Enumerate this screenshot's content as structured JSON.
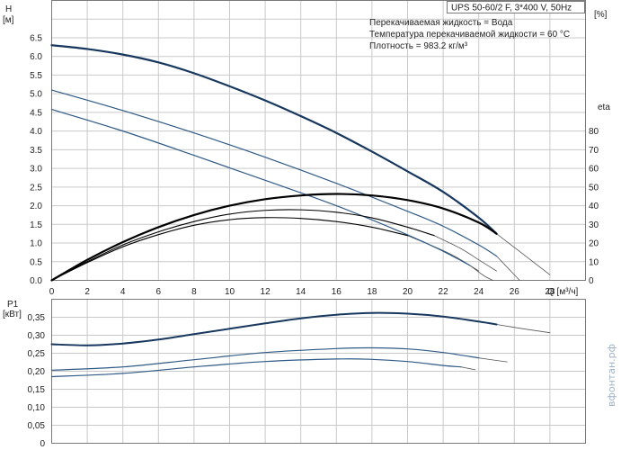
{
  "chart_data": [
    {
      "type": "line",
      "panel": "head-efficiency",
      "model_title": "UPS 50-60/2 F, 3*400 V, 50Hz",
      "info_lines": [
        "Перекачиваемая жидкость = Вода",
        "Температура перекачиваемой жидкости = 60 °C",
        "Плотность = 983.2 кг/м³"
      ],
      "ylabel": "H",
      "ylabel_unit": "[м]",
      "y2label": "eta",
      "y2label_unit": "[%]",
      "xlabel": "Q [м³/ч]",
      "xlim": [
        0,
        30
      ],
      "ylim": [
        0,
        7.5
      ],
      "y2lim": [
        0,
        150
      ],
      "x_ticks": [
        0,
        2,
        4,
        6,
        8,
        10,
        12,
        14,
        16,
        18,
        20,
        22,
        24,
        26,
        28
      ],
      "y_ticks": [
        "0.0",
        "0.5",
        "1.0",
        "1.5",
        "2.0",
        "2.5",
        "3.0",
        "3.5",
        "4.0",
        "4.5",
        "5.0",
        "5.5",
        "6.0",
        "6.5"
      ],
      "y2_ticks": [
        0,
        10,
        20,
        30,
        40,
        50,
        60,
        70,
        80
      ],
      "grid": true,
      "head_series": [
        {
          "points": [
            [
              0,
              6.3
            ],
            [
              2,
              6.2
            ],
            [
              4,
              6.05
            ],
            [
              6,
              5.84
            ],
            [
              8,
              5.55
            ],
            [
              10,
              5.2
            ],
            [
              12,
              4.82
            ],
            [
              14,
              4.4
            ],
            [
              16,
              3.95
            ],
            [
              18,
              3.45
            ],
            [
              20,
              2.92
            ],
            [
              22,
              2.37
            ],
            [
              24,
              1.68
            ],
            [
              25,
              1.25
            ]
          ],
          "emphasis": true
        },
        {
          "points": [
            [
              0,
              5.1
            ],
            [
              4,
              4.55
            ],
            [
              8,
              3.95
            ],
            [
              12,
              3.3
            ],
            [
              16,
              2.6
            ],
            [
              20,
              1.85
            ],
            [
              22,
              1.45
            ],
            [
              24,
              0.95
            ],
            [
              25,
              0.65
            ]
          ],
          "emphasis": false
        },
        {
          "points": [
            [
              0,
              4.58
            ],
            [
              4,
              4.0
            ],
            [
              8,
              3.35
            ],
            [
              12,
              2.68
            ],
            [
              16,
              2.0
            ],
            [
              20,
              1.22
            ],
            [
              22,
              0.78
            ],
            [
              23.5,
              0.4
            ]
          ],
          "emphasis": false
        }
      ],
      "head_tails": [
        {
          "points": [
            [
              25,
              1.25
            ],
            [
              26.5,
              0.7
            ],
            [
              28,
              0.15
            ]
          ]
        },
        {
          "points": [
            [
              25,
              0.65
            ],
            [
              25.7,
              0.3
            ],
            [
              26.3,
              0.0
            ]
          ]
        },
        {
          "points": [
            [
              23.5,
              0.4
            ],
            [
              24.3,
              0.12
            ],
            [
              24.8,
              0.0
            ]
          ]
        }
      ],
      "eta_series": [
        {
          "points": [
            [
              0,
              0
            ],
            [
              2,
              11
            ],
            [
              4,
              20.5
            ],
            [
              6,
              28.5
            ],
            [
              8,
              35
            ],
            [
              10,
              40
            ],
            [
              12,
              43.5
            ],
            [
              14,
              45.5
            ],
            [
              16,
              46.3
            ],
            [
              18,
              45.5
            ],
            [
              20,
              43
            ],
            [
              22,
              38.5
            ],
            [
              24,
              31
            ],
            [
              25,
              25
            ]
          ],
          "emphasis": true
        },
        {
          "points": [
            [
              0,
              0
            ],
            [
              2,
              10
            ],
            [
              4,
              19
            ],
            [
              6,
              26
            ],
            [
              8,
              31.5
            ],
            [
              10,
              35.5
            ],
            [
              12,
              37.5
            ],
            [
              14,
              37.8
            ],
            [
              16,
              36.5
            ],
            [
              18,
              33.5
            ],
            [
              20,
              28.5
            ],
            [
              21.5,
              24
            ]
          ],
          "emphasis": false
        },
        {
          "points": [
            [
              0,
              0
            ],
            [
              2,
              9.5
            ],
            [
              4,
              18
            ],
            [
              6,
              24.5
            ],
            [
              8,
              29.5
            ],
            [
              10,
              32.5
            ],
            [
              12,
              33.6
            ],
            [
              14,
              33.2
            ],
            [
              16,
              31.5
            ],
            [
              18,
              28.5
            ],
            [
              20,
              24
            ]
          ],
          "emphasis": false
        }
      ],
      "eta_tails": [
        {
          "points": [
            [
              21.5,
              24
            ],
            [
              23,
              17
            ],
            [
              24,
              11
            ],
            [
              25,
              5
            ]
          ]
        },
        {
          "points": [
            [
              20,
              24
            ],
            [
              22,
              16
            ],
            [
              23,
              11
            ],
            [
              24,
              5
            ]
          ]
        }
      ]
    },
    {
      "type": "line",
      "panel": "power",
      "ylabel": "P1",
      "ylabel_unit": "[кВт]",
      "xlim": [
        0,
        30
      ],
      "ylim": [
        0,
        0.4
      ],
      "y_ticks": [
        "0",
        "0,05",
        "0,10",
        "0,15",
        "0,20",
        "0,25",
        "0,30",
        "0,35"
      ],
      "grid": true,
      "power_series": [
        {
          "points": [
            [
              0,
              0.275
            ],
            [
              2,
              0.272
            ],
            [
              4,
              0.277
            ],
            [
              6,
              0.288
            ],
            [
              8,
              0.303
            ],
            [
              10,
              0.318
            ],
            [
              12,
              0.333
            ],
            [
              14,
              0.347
            ],
            [
              16,
              0.357
            ],
            [
              18,
              0.362
            ],
            [
              20,
              0.36
            ],
            [
              22,
              0.352
            ],
            [
              24,
              0.338
            ],
            [
              25,
              0.33
            ]
          ],
          "emphasis": true
        },
        {
          "points": [
            [
              0,
              0.203
            ],
            [
              4,
              0.212
            ],
            [
              8,
              0.232
            ],
            [
              12,
              0.252
            ],
            [
              16,
              0.263
            ],
            [
              18,
              0.265
            ],
            [
              20,
              0.262
            ],
            [
              22,
              0.252
            ],
            [
              24,
              0.237
            ]
          ],
          "emphasis": false
        },
        {
          "points": [
            [
              0,
              0.185
            ],
            [
              4,
              0.194
            ],
            [
              8,
              0.212
            ],
            [
              12,
              0.227
            ],
            [
              16,
              0.234
            ],
            [
              18,
              0.233
            ],
            [
              20,
              0.227
            ],
            [
              22,
              0.216
            ],
            [
              23,
              0.212
            ]
          ],
          "emphasis": false
        }
      ],
      "power_tails": [
        {
          "points": [
            [
              25,
              0.33
            ],
            [
              26.5,
              0.318
            ],
            [
              28,
              0.307
            ]
          ]
        },
        {
          "points": [
            [
              24,
              0.237
            ],
            [
              25,
              0.23
            ],
            [
              25.6,
              0.226
            ]
          ]
        },
        {
          "points": [
            [
              23,
              0.212
            ],
            [
              23.5,
              0.207
            ],
            [
              23.8,
              0.204
            ]
          ]
        }
      ]
    }
  ],
  "watermark": "вфонтан.рф",
  "colors": {
    "emphasis": "#17375e",
    "curve": "#2f5a86",
    "thin": "#555555",
    "eta": "#000000"
  }
}
